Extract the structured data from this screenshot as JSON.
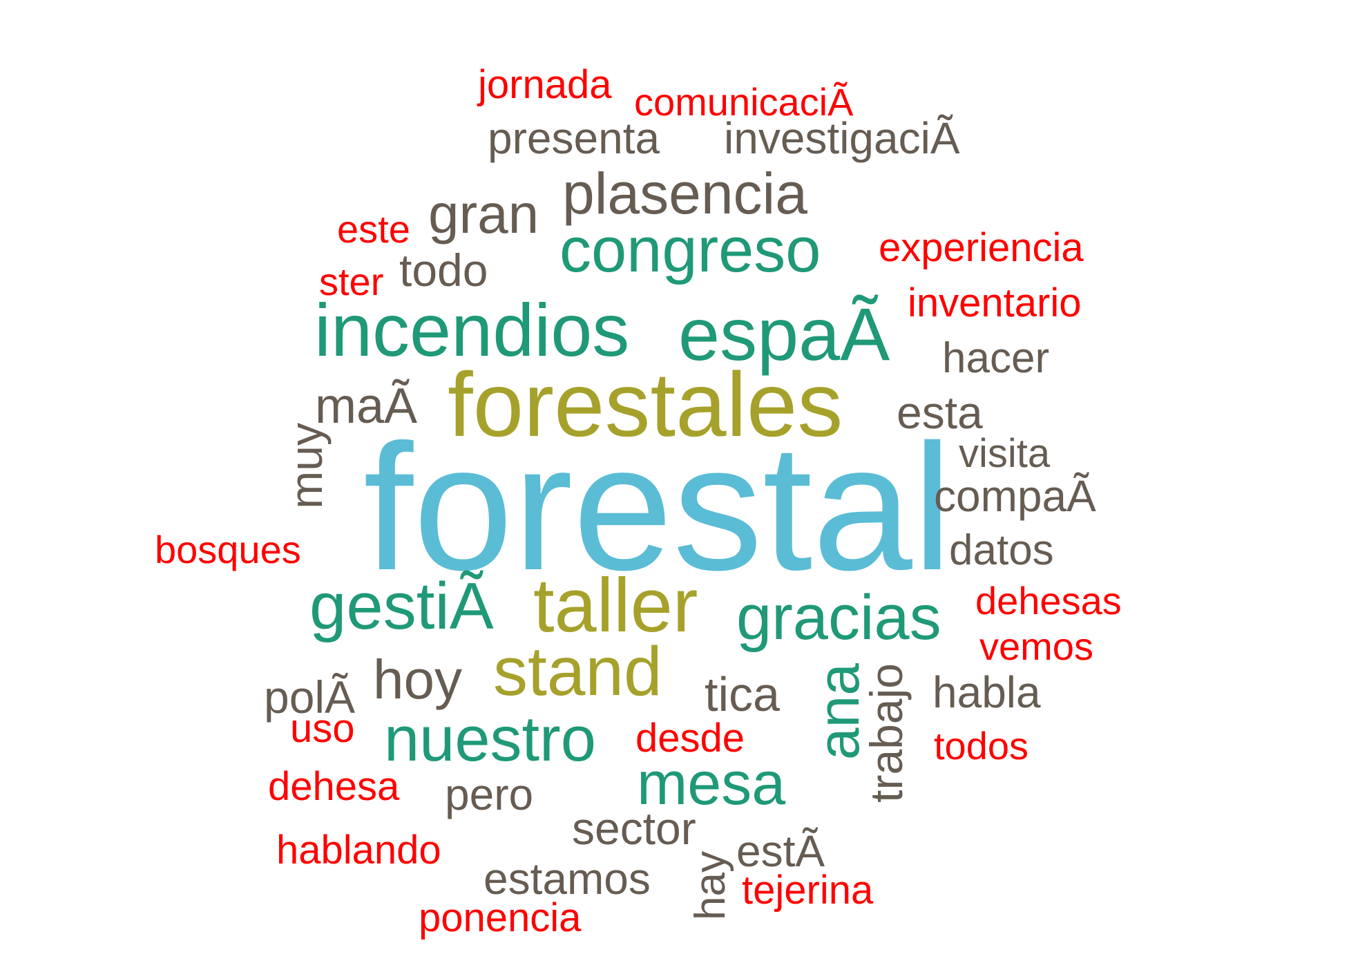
{
  "words": {
    "forestal": "forestal",
    "forestales": "forestales",
    "incendios": "incendios",
    "espa": "espaÃ",
    "congreso": "congreso",
    "gesti": "gestiÃ",
    "taller": "taller",
    "gracias": "gracias",
    "stand": "stand",
    "nuestro": "nuestro",
    "mesa": "mesa",
    "ana": "ana",
    "plasencia": "plasencia",
    "gran": "gran",
    "ma": "maÃ",
    "hoy": "hoy",
    "todo": "todo",
    "presenta": "presenta",
    "investigaci": "investigaciÃ",
    "hacer": "hacer",
    "esta": "esta",
    "visita": "visita",
    "compa": "compaÃ",
    "datos": "datos",
    "pol": "polÃ",
    "tica": "tica",
    "habla": "habla",
    "pero": "pero",
    "sector": "sector",
    "estamos": "estamos",
    "est": "estÃ",
    "muy": "muy",
    "trabajo": "trabajo",
    "hay": "hay",
    "jornada": "jornada",
    "comunicaci": "comunicaciÃ",
    "este": "este",
    "experiencia": "experiencia",
    "ster": "ster",
    "inventario": "inventario",
    "bosques": "bosques",
    "dehesas": "dehesas",
    "vemos": "vemos",
    "uso": "uso",
    "desde": "desde",
    "todos": "todos",
    "dehesa": "dehesa",
    "hablando": "hablando",
    "tejerina": "tejerina",
    "ponencia": "ponencia"
  },
  "colors": {
    "red": "#ff0000",
    "brown": "#665c52",
    "teal": "#1f9977",
    "olive": "#a6a12b",
    "blue": "#5bbcd6",
    "background": "#ffffff"
  }
}
